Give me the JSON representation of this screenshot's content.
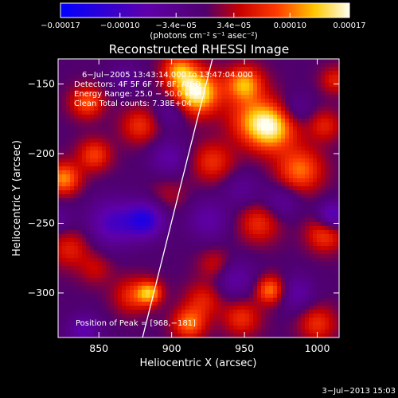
{
  "chart_data": {
    "type": "heatmap",
    "title": "Reconstructed RHESSI Image",
    "xlabel": "Heliocentric X (arcsec)",
    "ylabel": "Heliocentric Y (arcsec)",
    "xlim": [
      822,
      1015
    ],
    "ylim": [
      -332,
      -132
    ],
    "x_ticks": [
      850,
      900,
      950,
      1000
    ],
    "y_ticks": [
      -300,
      -250,
      -200,
      -150
    ],
    "x_tick_labels": [
      "850",
      "900",
      "950",
      "1000"
    ],
    "y_tick_labels": [
      "−300",
      "−250",
      "−200",
      "−150"
    ],
    "colorbar": {
      "range": [
        -0.00017,
        0.00017
      ],
      "ticks": [
        -0.00017,
        -0.0001,
        -3.4e-05,
        3.4e-05,
        0.0001,
        0.00017
      ],
      "tick_labels": [
        "−0.00017",
        "−0.00010",
        "−3.4e−05",
        "3.4e−05",
        "0.00010",
        "0.00017"
      ],
      "unit_label": "(photons cm⁻² s⁻¹ asec⁻²)"
    },
    "annotations": [
      "6−Jul−2005 13:43:14.000 to 13:47:04.000",
      "Detectors: 4F 5F 6F 7F 8F, Att 0",
      "Energy Range: 25.0 − 50.0 keV",
      "Clean    Total counts: 7.38E+04"
    ],
    "peak_label": "Position of Peak = [968,−181]",
    "peak": [
      968,
      -181
    ],
    "limb": [
      [
        880,
        -332
      ],
      [
        928,
        -132
      ]
    ],
    "grid": false,
    "sources": [
      {
        "x": 917,
        "y": -156,
        "v": 0.00017,
        "r": 11
      },
      {
        "x": 950,
        "y": -150,
        "v": 0.00012,
        "r": 9
      },
      {
        "x": 905,
        "y": -140,
        "v": 0.0001,
        "r": 8
      },
      {
        "x": 968,
        "y": -181,
        "v": 0.00015,
        "r": 12
      },
      {
        "x": 988,
        "y": -212,
        "v": 0.0001,
        "r": 11
      },
      {
        "x": 953,
        "y": -175,
        "v": 6e-05,
        "r": 12
      },
      {
        "x": 826,
        "y": -218,
        "v": 0.00011,
        "r": 8
      },
      {
        "x": 847,
        "y": -201,
        "v": 8e-05,
        "r": 8
      },
      {
        "x": 842,
        "y": -163,
        "v": 9e-05,
        "r": 8
      },
      {
        "x": 878,
        "y": -180,
        "v": 7e-05,
        "r": 9
      },
      {
        "x": 928,
        "y": -206,
        "v": 7e-05,
        "r": 10
      },
      {
        "x": 960,
        "y": -250,
        "v": 7e-05,
        "r": 10
      },
      {
        "x": 1005,
        "y": -258,
        "v": 8e-05,
        "r": 9
      },
      {
        "x": 830,
        "y": -268,
        "v": 6e-05,
        "r": 10
      },
      {
        "x": 848,
        "y": -283,
        "v": 4e-05,
        "r": 8
      },
      {
        "x": 873,
        "y": -302,
        "v": 7e-05,
        "r": 9
      },
      {
        "x": 885,
        "y": -300,
        "v": 0.00011,
        "r": 6
      },
      {
        "x": 922,
        "y": -305,
        "v": 6e-05,
        "r": 9
      },
      {
        "x": 912,
        "y": -322,
        "v": 0.0001,
        "r": 8
      },
      {
        "x": 930,
        "y": -280,
        "v": 5e-05,
        "r": 8
      },
      {
        "x": 948,
        "y": -318,
        "v": 7e-05,
        "r": 9
      },
      {
        "x": 968,
        "y": -298,
        "v": 0.00011,
        "r": 7
      },
      {
        "x": 1000,
        "y": -322,
        "v": 7e-05,
        "r": 9
      },
      {
        "x": 1005,
        "y": -180,
        "v": 6e-05,
        "r": 8
      },
      {
        "x": 898,
        "y": -230,
        "v": 3e-05,
        "r": 9
      },
      {
        "x": 1012,
        "y": -147,
        "v": 6e-05,
        "r": 7
      },
      {
        "x": 860,
        "y": -250,
        "v": -9e-05,
        "r": 12
      },
      {
        "x": 882,
        "y": -248,
        "v": -0.00012,
        "r": 9
      },
      {
        "x": 925,
        "y": -248,
        "v": -6e-05,
        "r": 10
      },
      {
        "x": 898,
        "y": -203,
        "v": -6e-05,
        "r": 9
      },
      {
        "x": 985,
        "y": -168,
        "v": -5e-05,
        "r": 8
      },
      {
        "x": 1010,
        "y": -245,
        "v": -0.0001,
        "r": 7
      },
      {
        "x": 975,
        "y": -235,
        "v": -5e-05,
        "r": 9
      },
      {
        "x": 943,
        "y": -290,
        "v": -6e-05,
        "r": 10
      },
      {
        "x": 985,
        "y": -300,
        "v": -6e-05,
        "r": 9
      },
      {
        "x": 840,
        "y": -327,
        "v": -7e-05,
        "r": 8
      },
      {
        "x": 822,
        "y": -248,
        "v": -4e-05,
        "r": 8
      },
      {
        "x": 868,
        "y": -145,
        "v": -4e-05,
        "r": 8
      },
      {
        "x": 900,
        "y": -170,
        "v": -5e-05,
        "r": 8
      },
      {
        "x": 948,
        "y": -226,
        "v": -4e-05,
        "r": 9
      }
    ]
  },
  "timestamp": "3−Jul−2013 15:03"
}
